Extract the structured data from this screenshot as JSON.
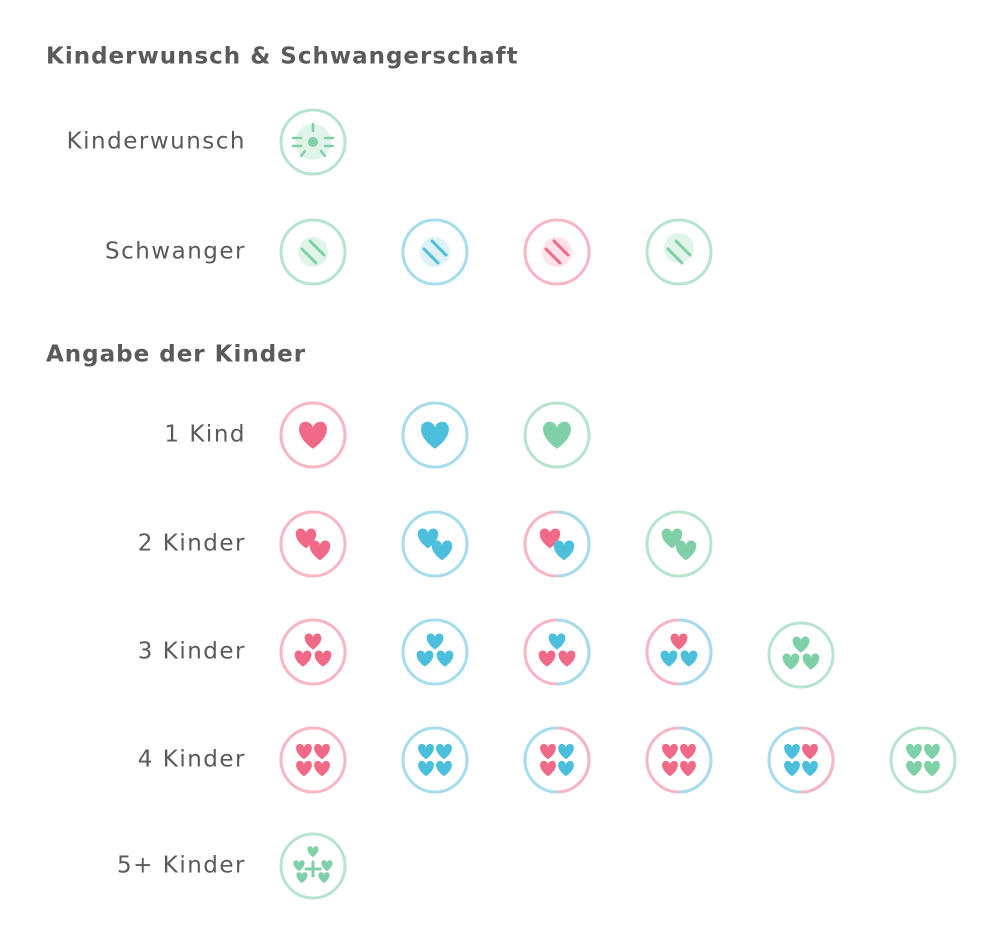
{
  "sections": [
    {
      "title": "Kinderwunsch & Schwangerschaft",
      "rows": [
        {
          "label": "Kinderwunsch"
        },
        {
          "label": "Schwanger"
        }
      ]
    },
    {
      "title": "Angabe der Kinder",
      "rows": [
        {
          "label": "1 Kind"
        },
        {
          "label": "2 Kinder"
        },
        {
          "label": "3 Kinder"
        },
        {
          "label": "4 Kinder"
        },
        {
          "label": "5+ Kinder"
        }
      ]
    }
  ]
}
